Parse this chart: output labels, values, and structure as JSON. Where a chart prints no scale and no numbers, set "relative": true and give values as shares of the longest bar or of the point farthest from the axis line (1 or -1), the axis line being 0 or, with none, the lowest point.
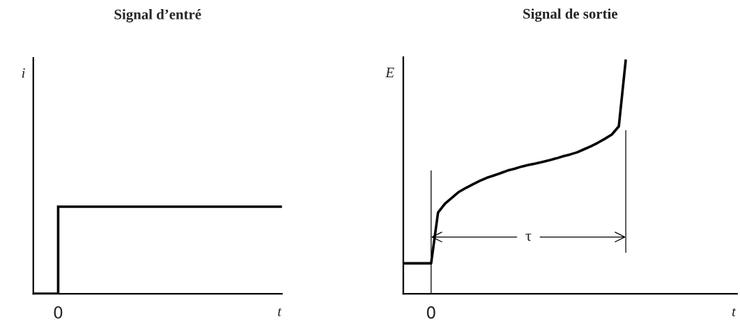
{
  "chart_data": [
    {
      "type": "step",
      "title": "Signal d’entré",
      "xlabel": "t",
      "ylabel": "i",
      "relative": true,
      "categories": [
        null,
        null,
        null,
        null,
        null,
        null,
        null,
        null,
        null,
        null,
        null
      ],
      "series": [
        {
          "color": "#000000",
          "values": [
            0,
            1,
            1,
            1,
            1,
            1,
            1,
            1,
            1,
            1,
            1
          ]
        }
      ],
      "annotations": [
        "0"
      ]
    },
    {
      "type": "line",
      "title": "Signal de sortie",
      "xlabel": "t",
      "ylabel": "E",
      "relative": true,
      "categories": [
        null,
        null,
        null,
        null,
        null,
        null,
        null,
        null,
        null,
        null,
        null,
        null,
        null,
        null,
        null,
        null,
        null,
        null,
        null,
        null,
        null,
        null,
        null,
        null,
        null,
        null,
        null,
        null,
        null,
        null,
        null,
        null,
        null,
        null,
        null,
        null,
        null,
        null,
        null,
        null,
        null,
        null,
        null,
        null,
        null,
        null,
        null,
        null,
        null
      ],
      "series": [
        {
          "color": "#000000",
          "values": [
            0.13,
            0.13,
            0.13,
            0.13,
            0.13,
            0.347,
            0.385,
            0.41,
            0.435,
            0.452,
            0.467,
            0.482,
            0.495,
            0.505,
            0.515,
            0.526,
            0.534,
            0.543,
            0.55,
            0.556,
            0.563,
            0.57,
            0.578,
            0.587,
            0.595,
            0.604,
            0.617,
            0.63,
            0.645,
            0.662,
            0.68,
            0.715,
            1.0,
            null,
            null,
            null,
            null,
            null,
            null,
            null,
            null,
            null,
            null,
            null,
            null,
            null,
            null,
            null,
            null
          ]
        }
      ],
      "annotations": [
        "0",
        "τ"
      ]
    }
  ]
}
